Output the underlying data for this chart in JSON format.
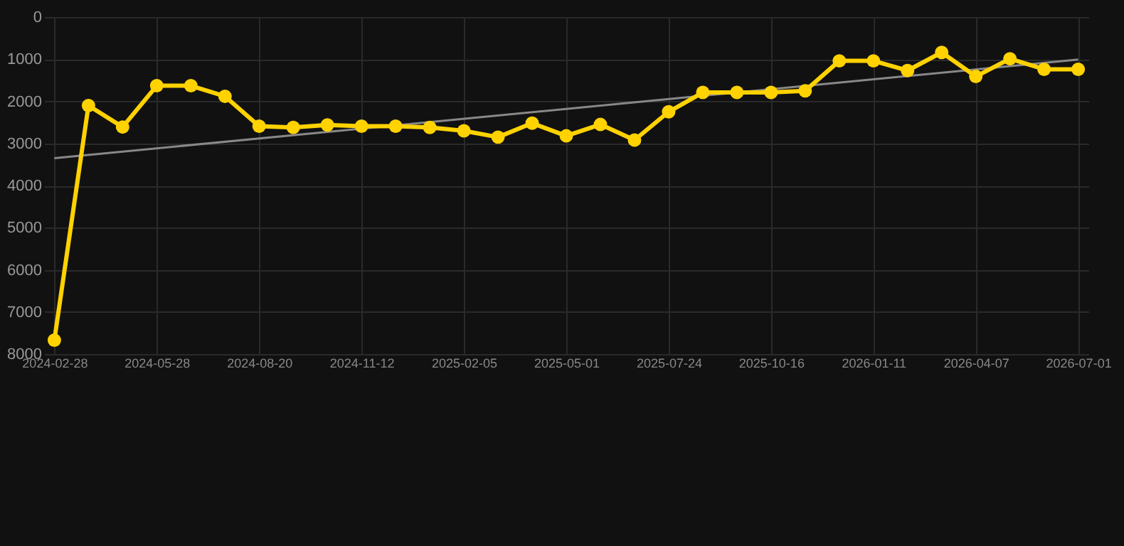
{
  "chart_data": {
    "type": "line",
    "categories": [
      "2024-02-28",
      null,
      null,
      "2024-05-28",
      null,
      null,
      "2024-08-20",
      null,
      null,
      "2024-11-12",
      null,
      null,
      "2025-02-05",
      null,
      null,
      "2025-05-01",
      null,
      null,
      "2025-07-24",
      null,
      null,
      "2025-10-16",
      null,
      null,
      "2026-01-11",
      null,
      null,
      "2026-04-07",
      null,
      null,
      "2026-07-01"
    ],
    "series": [
      {
        "type": "line",
        "color": "#888888",
        "marker": "none",
        "values": [
          3350,
          null,
          null,
          null,
          null,
          null,
          null,
          null,
          null,
          null,
          null,
          null,
          null,
          null,
          null,
          null,
          null,
          null,
          null,
          null,
          null,
          null,
          null,
          null,
          null,
          null,
          null,
          null,
          null,
          null,
          1010
        ]
      },
      {
        "color": "#ffd200",
        "values": [
          7670,
          2100,
          2610,
          1630,
          1630,
          1880,
          2590,
          2620,
          2560,
          2590,
          2590,
          2620,
          2700,
          2850,
          2520,
          2820,
          2550,
          2920,
          2250,
          1790,
          1790,
          1790,
          1750,
          1040,
          1040,
          1270,
          840,
          1410,
          990,
          1240,
          1240
        ]
      }
    ],
    "ylim": [
      8000,
      0
    ],
    "yticks": [
      0,
      1000,
      2000,
      3000,
      4000,
      5000,
      6000,
      7000,
      8000
    ],
    "grid": true,
    "marker": "circle"
  }
}
